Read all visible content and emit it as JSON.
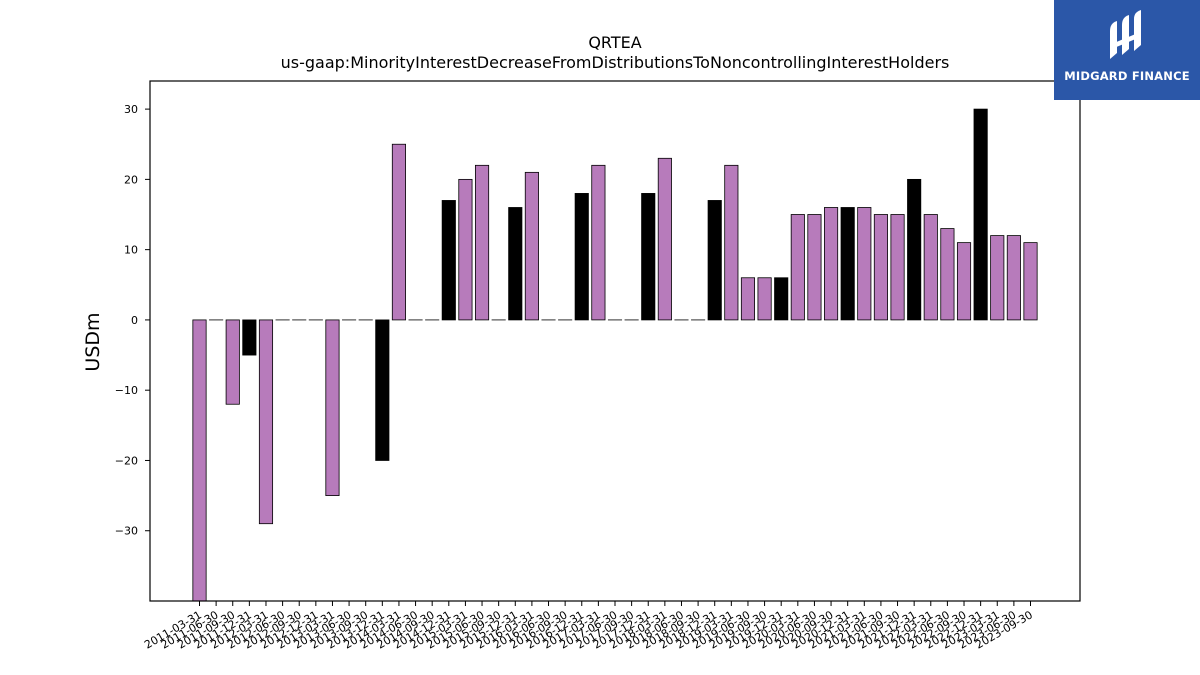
{
  "chart_data": {
    "type": "bar",
    "title": "QRTEA",
    "subtitle": "us-gaap:MinorityInterestDecreaseFromDistributionsToNoncontrollingInterestHolders",
    "ylabel": "USDm",
    "xlabel": "",
    "ylim": [
      -40,
      34
    ],
    "yticks": [
      -30,
      -20,
      -10,
      0,
      10,
      20,
      30
    ],
    "colors": {
      "default": "#b77bbb",
      "highlight": "#000000",
      "edge": "#000000"
    },
    "categories": [
      "2011-03-31",
      "2011-06-30",
      "2011-09-30",
      "2011-12-31",
      "2012-03-31",
      "2012-06-30",
      "2012-09-30",
      "2012-12-31",
      "2013-03-31",
      "2013-06-30",
      "2013-09-30",
      "2013-12-31",
      "2014-03-31",
      "2014-06-30",
      "2014-09-30",
      "2014-12-31",
      "2015-03-31",
      "2015-06-30",
      "2015-09-30",
      "2015-12-31",
      "2016-03-31",
      "2016-06-30",
      "2016-09-30",
      "2016-12-31",
      "2017-03-31",
      "2017-06-30",
      "2017-09-30",
      "2017-12-31",
      "2018-03-31",
      "2018-06-30",
      "2018-09-30",
      "2018-12-31",
      "2019-03-31",
      "2019-06-30",
      "2019-09-30",
      "2019-12-31",
      "2020-03-31",
      "2020-06-30",
      "2020-09-30",
      "2020-12-31",
      "2021-03-31",
      "2021-06-30",
      "2021-09-30",
      "2021-12-31",
      "2022-03-31",
      "2022-06-30",
      "2022-09-30",
      "2022-12-31",
      "2023-03-31",
      "2023-06-30",
      "2023-09-30"
    ],
    "values": [
      -40,
      0,
      -12,
      -5,
      -29,
      0,
      0,
      0,
      -25,
      0,
      0,
      -20,
      25,
      0,
      0,
      17,
      20,
      22,
      0,
      16,
      21,
      0,
      0,
      18,
      22,
      0,
      0,
      18,
      23,
      0,
      0,
      17,
      22,
      6,
      6,
      6,
      15,
      15,
      16,
      16,
      16,
      15,
      15,
      20,
      15,
      13,
      11,
      30,
      12,
      12,
      11
    ],
    "highlight": [
      false,
      false,
      false,
      true,
      false,
      false,
      false,
      false,
      false,
      false,
      false,
      true,
      false,
      false,
      false,
      true,
      false,
      false,
      false,
      true,
      false,
      false,
      false,
      true,
      false,
      false,
      false,
      true,
      false,
      false,
      false,
      true,
      false,
      false,
      false,
      true,
      false,
      false,
      false,
      true,
      false,
      false,
      false,
      true,
      false,
      false,
      false,
      true,
      false,
      false,
      false
    ]
  },
  "logo": {
    "text": "MIDGARD FINANCE",
    "background": "#2b57a8"
  }
}
